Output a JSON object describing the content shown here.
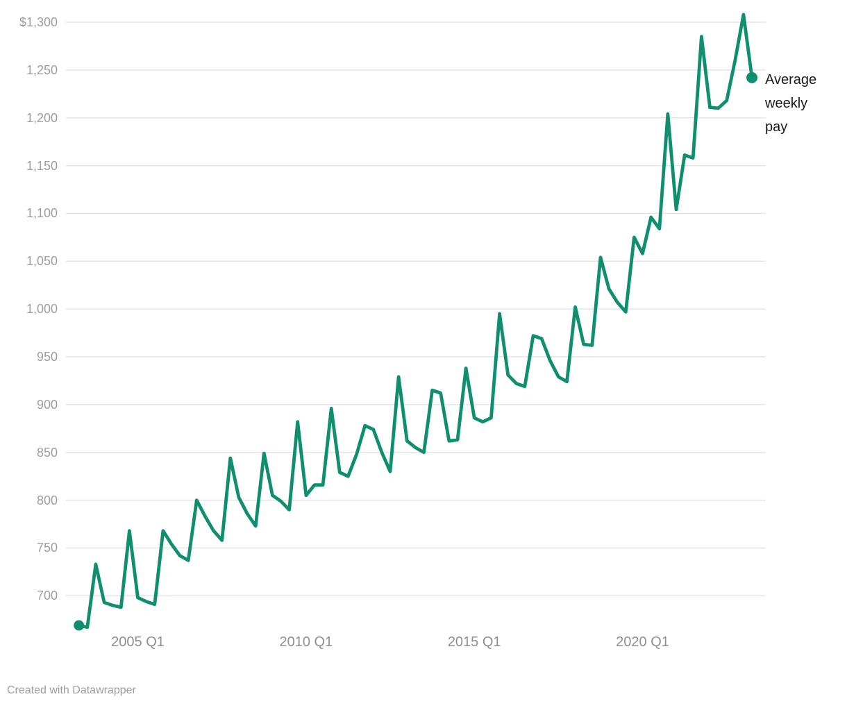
{
  "chart_data": {
    "type": "line",
    "title": "",
    "series_label": "Average weekly pay",
    "grid": "horizontal-only",
    "legend_position": "direct-label-at-line-end",
    "x_tick_labels": [
      "2005 Q1",
      "2010 Q1",
      "2015 Q1",
      "2020 Q1"
    ],
    "y_ticks": [
      {
        "value": 700,
        "label": "700"
      },
      {
        "value": 750,
        "label": "750"
      },
      {
        "value": 800,
        "label": "800"
      },
      {
        "value": 850,
        "label": "850"
      },
      {
        "value": 900,
        "label": "900"
      },
      {
        "value": 950,
        "label": "950"
      },
      {
        "value": 1000,
        "label": "1,000"
      },
      {
        "value": 1050,
        "label": "1,050"
      },
      {
        "value": 1100,
        "label": "1,100"
      },
      {
        "value": 1150,
        "label": "1,150"
      },
      {
        "value": 1200,
        "label": "1,200"
      },
      {
        "value": 1250,
        "label": "1,250"
      },
      {
        "value": 1300,
        "label": "$1,300"
      }
    ],
    "y_axis_range": [
      700,
      1300
    ],
    "quarters": [
      "2003 Q2",
      "2003 Q3",
      "2003 Q4",
      "2004 Q1",
      "2004 Q2",
      "2004 Q3",
      "2004 Q4",
      "2005 Q1",
      "2005 Q2",
      "2005 Q3",
      "2005 Q4",
      "2006 Q1",
      "2006 Q2",
      "2006 Q3",
      "2006 Q4",
      "2007 Q1",
      "2007 Q2",
      "2007 Q3",
      "2007 Q4",
      "2008 Q1",
      "2008 Q2",
      "2008 Q3",
      "2008 Q4",
      "2009 Q1",
      "2009 Q2",
      "2009 Q3",
      "2009 Q4",
      "2010 Q1",
      "2010 Q2",
      "2010 Q3",
      "2010 Q4",
      "2011 Q1",
      "2011 Q2",
      "2011 Q3",
      "2011 Q4",
      "2012 Q1",
      "2012 Q2",
      "2012 Q3",
      "2012 Q4",
      "2013 Q1",
      "2013 Q2",
      "2013 Q3",
      "2013 Q4",
      "2014 Q1",
      "2014 Q2",
      "2014 Q3",
      "2014 Q4",
      "2015 Q1",
      "2015 Q2",
      "2015 Q3",
      "2015 Q4",
      "2016 Q1",
      "2016 Q2",
      "2016 Q3",
      "2016 Q4",
      "2017 Q1",
      "2017 Q2",
      "2017 Q3",
      "2017 Q4",
      "2018 Q1",
      "2018 Q2",
      "2018 Q3",
      "2018 Q4",
      "2019 Q1",
      "2019 Q2",
      "2019 Q3",
      "2019 Q4",
      "2020 Q1",
      "2020 Q2",
      "2020 Q3",
      "2020 Q4",
      "2021 Q1",
      "2021 Q2",
      "2021 Q3",
      "2021 Q4",
      "2022 Q1",
      "2022 Q2",
      "2022 Q3",
      "2022 Q4",
      "2023 Q1",
      "2023 Q2"
    ],
    "values": [
      669,
      667,
      733,
      693,
      690,
      688,
      768,
      698,
      694,
      691,
      768,
      754,
      742,
      737,
      800,
      783,
      768,
      758,
      844,
      803,
      786,
      773,
      849,
      805,
      799,
      790,
      882,
      805,
      816,
      816,
      896,
      829,
      825,
      848,
      878,
      874,
      850,
      830,
      929,
      862,
      855,
      850,
      915,
      912,
      862,
      863,
      938,
      886,
      882,
      886,
      995,
      931,
      922,
      919,
      972,
      969,
      946,
      929,
      924,
      1002,
      963,
      962,
      1054,
      1021,
      1007,
      997,
      1075,
      1058,
      1096,
      1084,
      1204,
      1104,
      1161,
      1158,
      1285,
      1211,
      1210,
      1218,
      1260,
      1308,
      1242
    ],
    "line_color": "#0f8f70"
  },
  "annotation": {
    "series_label": "Average weekly pay"
  },
  "footer": {
    "attribution": "Created with Datawrapper"
  },
  "colors": {
    "line": "#0f8f70",
    "grid": "#e4e4e4",
    "y_axis_text": "#9e9e9e",
    "x_axis_text": "#8f8f8f",
    "annotation_text": "#1a1a1a",
    "background": "#ffffff"
  }
}
